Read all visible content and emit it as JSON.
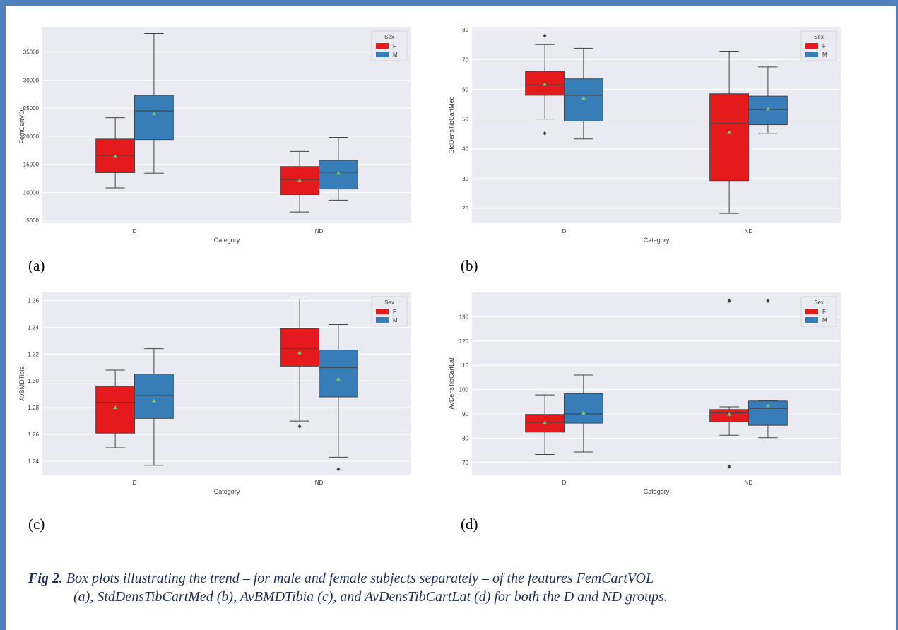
{
  "colors": {
    "female": "#e41a1c",
    "male": "#377eb8",
    "plot_bg": "#eaeaf2",
    "grid": "#ffffff",
    "mean_marker": "#7cc46a",
    "frame": "#4f81bd"
  },
  "panel_labels": {
    "a": "(a)",
    "b": "(b)",
    "c": "(c)",
    "d": "(d)"
  },
  "caption": {
    "fig_label": "Fig 2.",
    "line1": " Box plots illustrating the trend – for male and female subjects separately – of the features FemCartVOL",
    "line2": "(a), StdDensTibCartMed (b), AvBMDTibia (c), and AvDensTibCartLat (d) for both the D and ND groups."
  },
  "chart_data": [
    {
      "id": "a",
      "type": "box",
      "xlabel": "Category",
      "ylabel": "FemCartVOL",
      "categories": [
        "D",
        "ND"
      ],
      "ylim": [
        4500,
        39500
      ],
      "yticks": [
        5000,
        10000,
        15000,
        20000,
        25000,
        30000,
        35000
      ],
      "legend": {
        "title": "Sex",
        "position": "top-right"
      },
      "series": [
        {
          "name": "F",
          "boxes": [
            {
              "whislo": 10800,
              "q1": 13500,
              "med": 16600,
              "q3": 19500,
              "whishi": 23300,
              "mean": 16400,
              "fliers": []
            },
            {
              "whislo": 6500,
              "q1": 9600,
              "med": 12300,
              "q3": 14600,
              "whishi": 17300,
              "mean": 12100,
              "fliers": []
            }
          ]
        },
        {
          "name": "M",
          "boxes": [
            {
              "whislo": 13400,
              "q1": 19400,
              "med": 24500,
              "q3": 27300,
              "whishi": 38300,
              "mean": 24000,
              "fliers": []
            },
            {
              "whislo": 8600,
              "q1": 10600,
              "med": 13600,
              "q3": 15700,
              "whishi": 19800,
              "mean": 13400,
              "fliers": []
            }
          ]
        }
      ]
    },
    {
      "id": "b",
      "type": "box",
      "xlabel": "Category",
      "ylabel": "StdDensTibCartMed",
      "categories": [
        "D",
        "ND"
      ],
      "ylim": [
        15,
        81
      ],
      "yticks": [
        20,
        30,
        40,
        50,
        60,
        70,
        80
      ],
      "legend": {
        "title": "Sex",
        "position": "top-right"
      },
      "series": [
        {
          "name": "F",
          "boxes": [
            {
              "whislo": 50,
              "q1": 58,
              "med": 61.5,
              "q3": 66,
              "whishi": 75,
              "mean": 61.7,
              "fliers": [
                45.2,
                78
              ]
            },
            {
              "whislo": 18.3,
              "q1": 29.3,
              "med": 48.5,
              "q3": 58.5,
              "whishi": 72.8,
              "mean": 45.5,
              "fliers": []
            }
          ]
        },
        {
          "name": "M",
          "boxes": [
            {
              "whislo": 43.3,
              "q1": 49.3,
              "med": 58,
              "q3": 63.5,
              "whishi": 73.8,
              "mean": 57,
              "fliers": []
            },
            {
              "whislo": 45.2,
              "q1": 48.1,
              "med": 53.2,
              "q3": 57.7,
              "whishi": 67.5,
              "mean": 53.4,
              "fliers": []
            }
          ]
        }
      ]
    },
    {
      "id": "c",
      "type": "box",
      "xlabel": "Category",
      "ylabel": "AvBMDTibia",
      "categories": [
        "D",
        "ND"
      ],
      "ylim": [
        1.23,
        1.366
      ],
      "yticks": [
        1.24,
        1.26,
        1.28,
        1.3,
        1.32,
        1.34,
        1.36
      ],
      "legend": {
        "title": "Sex",
        "position": "top-right"
      },
      "series": [
        {
          "name": "F",
          "boxes": [
            {
              "whislo": 1.25,
              "q1": 1.261,
              "med": 1.284,
              "q3": 1.296,
              "whishi": 1.308,
              "mean": 1.28,
              "fliers": []
            },
            {
              "whislo": 1.27,
              "q1": 1.311,
              "med": 1.324,
              "q3": 1.339,
              "whishi": 1.361,
              "mean": 1.321,
              "fliers": [
                1.266
              ]
            }
          ]
        },
        {
          "name": "M",
          "boxes": [
            {
              "whislo": 1.237,
              "q1": 1.272,
              "med": 1.289,
              "q3": 1.305,
              "whishi": 1.324,
              "mean": 1.285,
              "fliers": []
            },
            {
              "whislo": 1.243,
              "q1": 1.288,
              "med": 1.31,
              "q3": 1.323,
              "whishi": 1.342,
              "mean": 1.301,
              "fliers": [
                1.234
              ]
            }
          ]
        }
      ]
    },
    {
      "id": "d",
      "type": "box",
      "xlabel": "Category",
      "ylabel": "AvDensTibCartLat",
      "categories": [
        "D",
        "ND"
      ],
      "ylim": [
        65,
        140
      ],
      "yticks": [
        70,
        80,
        90,
        100,
        110,
        120,
        130
      ],
      "legend": {
        "title": "Sex",
        "position": "top-right"
      },
      "series": [
        {
          "name": "F",
          "boxes": [
            {
              "whislo": 73.3,
              "q1": 82.5,
              "med": 86.5,
              "q3": 89.8,
              "whishi": 97.8,
              "mean": 86.3,
              "fliers": []
            },
            {
              "whislo": 81.2,
              "q1": 86.7,
              "med": 90.5,
              "q3": 91.8,
              "whishi": 92.9,
              "mean": 89.8,
              "fliers": [
                68.3,
                136.5
              ]
            }
          ]
        },
        {
          "name": "M",
          "boxes": [
            {
              "whislo": 74.3,
              "q1": 86.2,
              "med": 90,
              "q3": 98.3,
              "whishi": 106,
              "mean": 90.3,
              "fliers": []
            },
            {
              "whislo": 80.2,
              "q1": 85.3,
              "med": 92.3,
              "q3": 95.3,
              "whishi": 95.5,
              "mean": 93.4,
              "fliers": [
                136.5
              ]
            }
          ]
        }
      ]
    }
  ]
}
